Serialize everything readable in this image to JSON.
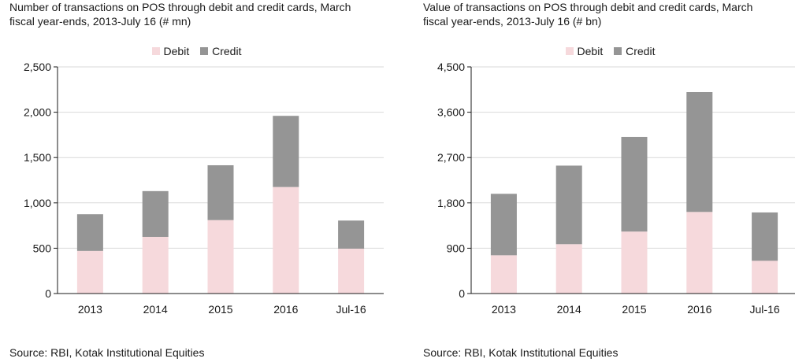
{
  "colors": {
    "debit": "#f6d9dc",
    "credit": "#959595",
    "axis": "#1a1a1a",
    "grid": "#d9d9d9"
  },
  "chart_data": [
    {
      "type": "bar",
      "stacked": true,
      "title_lines": [
        "Number of transactions on POS through debit and credit cards, March",
        "fiscal year-ends, 2013-July 16 (# mn)"
      ],
      "categories": [
        "2013",
        "2014",
        "2015",
        "2016",
        "Jul-16"
      ],
      "series": [
        {
          "name": "Debit",
          "values": [
            470,
            625,
            810,
            1175,
            495
          ]
        },
        {
          "name": "Credit",
          "values": [
            405,
            505,
            605,
            785,
            310
          ]
        }
      ],
      "ylim": [
        0,
        2500
      ],
      "yticks": [
        0,
        500,
        1000,
        1500,
        2000,
        2500
      ],
      "ytick_labels": [
        "0",
        "500",
        "1,000",
        "1,500",
        "2,000",
        "2,500"
      ],
      "grid": true,
      "legend_position": "top-center",
      "source": "Source: RBI, Kotak Institutional Equities"
    },
    {
      "type": "bar",
      "stacked": true,
      "title_lines": [
        "Value of transactions on POS through debit and credit cards, March",
        "fiscal year-ends, 2013-July 16 (# bn)"
      ],
      "categories": [
        "2013",
        "2014",
        "2015",
        "2016",
        "Jul-16"
      ],
      "series": [
        {
          "name": "Debit",
          "values": [
            760,
            980,
            1230,
            1620,
            650
          ]
        },
        {
          "name": "Credit",
          "values": [
            1220,
            1560,
            1880,
            2380,
            960
          ]
        }
      ],
      "ylim": [
        0,
        4500
      ],
      "yticks": [
        0,
        900,
        1800,
        2700,
        3600,
        4500
      ],
      "ytick_labels": [
        "0",
        "900",
        "1,800",
        "2,700",
        "3,600",
        "4,500"
      ],
      "grid": true,
      "legend_position": "top-center",
      "source": "Source: RBI, Kotak Institutional Equities"
    }
  ]
}
